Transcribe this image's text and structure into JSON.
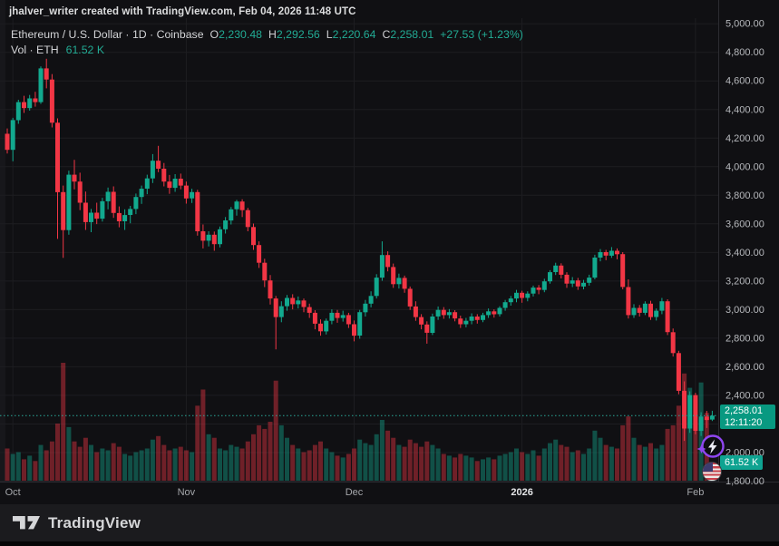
{
  "attribution": "jhalver_writer created with TradingView.com, Feb 04, 2026 11:48 UTC",
  "legend": {
    "title": "Ethereum / U.S. Dollar · 1D · Coinbase",
    "ohlc": [
      {
        "label": "O",
        "value": "2,230.48"
      },
      {
        "label": "H",
        "value": "2,292.56"
      },
      {
        "label": "L",
        "value": "2,220.64"
      },
      {
        "label": "C",
        "value": "2,258.01"
      }
    ],
    "change": "+27.53 (+1.23%)",
    "volume_label": "Vol · ETH",
    "volume_value": "61.52 K"
  },
  "price_label": {
    "price": "2,258.01",
    "countdown": "12:11:20"
  },
  "volume_badge": "61.52 K",
  "footer": {
    "logo_text": "TradingView"
  },
  "colors": {
    "background": "#101013",
    "grid": "#1d1d21",
    "up": "#12a98e",
    "down": "#f23645",
    "vol_up": "rgba(18,169,142,0.42)",
    "vol_down": "rgba(242,54,69,0.42)",
    "dotted_line": "#2aa99a",
    "accent_label": "#089981",
    "legend_value": "#22ab94",
    "axis_text": "#b6b8bc",
    "time_text": "#a5a7ab",
    "year_text": "#e4e5e7"
  },
  "chart_data": {
    "type": "candlestick",
    "symbol": "Ethereum / U.S. Dollar (ETHUSD)",
    "interval": "1D",
    "exchange": "Coinbase",
    "x_range": "Oct 1, 2025 - Feb 4, 2026",
    "ylim": [
      1800,
      5000
    ],
    "ytick": 200,
    "grid": true,
    "last_close": 2258.01,
    "last_volume_k": 61.52,
    "price_axis_labels": [
      "5,000.00",
      "4,800.00",
      "4,600.00",
      "4,400.00",
      "4,200.00",
      "4,000.00",
      "3,800.00",
      "3,600.00",
      "3,400.00",
      "3,200.00",
      "3,000.00",
      "2,800.00",
      "2,600.00",
      "2,400.00",
      "2,200.00",
      "2,000.00",
      "1,800.00"
    ],
    "months": [
      {
        "label": "Oct",
        "i": 1,
        "bold": false
      },
      {
        "label": "Nov",
        "i": 32,
        "bold": false
      },
      {
        "label": "Dec",
        "i": 62,
        "bold": false
      },
      {
        "label": "2026",
        "i": 92,
        "bold": true
      },
      {
        "label": "Feb",
        "i": 123,
        "bold": false
      }
    ],
    "candles": [
      [
        4230,
        4268,
        4092,
        4118
      ],
      [
        4118,
        4342,
        4038,
        4326
      ],
      [
        4326,
        4468,
        4300,
        4452
      ],
      [
        4452,
        4496,
        4376,
        4410
      ],
      [
        4410,
        4502,
        4392,
        4478
      ],
      [
        4478,
        4524,
        4420,
        4452
      ],
      [
        4452,
        4702,
        4440,
        4688
      ],
      [
        4688,
        4755,
        4548,
        4610
      ],
      [
        4610,
        4648,
        4275,
        4308
      ],
      [
        4308,
        4338,
        3495,
        3822
      ],
      [
        3822,
        3868,
        3362,
        3556
      ],
      [
        3556,
        3972,
        3524,
        3944
      ],
      [
        3944,
        4048,
        3842,
        3896
      ],
      [
        3896,
        3958,
        3696,
        3748
      ],
      [
        3748,
        3826,
        3558,
        3612
      ],
      [
        3612,
        3704,
        3542,
        3678
      ],
      [
        3678,
        3748,
        3598,
        3636
      ],
      [
        3636,
        3782,
        3616,
        3758
      ],
      [
        3758,
        3854,
        3702,
        3824
      ],
      [
        3824,
        3862,
        3642,
        3676
      ],
      [
        3676,
        3722,
        3576,
        3618
      ],
      [
        3618,
        3702,
        3558,
        3662
      ],
      [
        3662,
        3726,
        3604,
        3704
      ],
      [
        3704,
        3812,
        3668,
        3788
      ],
      [
        3788,
        3868,
        3740,
        3846
      ],
      [
        3846,
        3944,
        3808,
        3918
      ],
      [
        3918,
        4088,
        3886,
        4042
      ],
      [
        4042,
        4146,
        3962,
        3986
      ],
      [
        3986,
        4026,
        3862,
        3896
      ],
      [
        3896,
        3942,
        3810,
        3852
      ],
      [
        3852,
        3948,
        3824,
        3916
      ],
      [
        3916,
        3952,
        3842,
        3868
      ],
      [
        3868,
        3896,
        3742,
        3778
      ],
      [
        3778,
        3846,
        3746,
        3822
      ],
      [
        3822,
        3838,
        3518,
        3548
      ],
      [
        3548,
        3596,
        3428,
        3482
      ],
      [
        3482,
        3548,
        3442,
        3524
      ],
      [
        3524,
        3546,
        3412,
        3458
      ],
      [
        3458,
        3582,
        3436,
        3562
      ],
      [
        3562,
        3648,
        3532,
        3624
      ],
      [
        3624,
        3718,
        3596,
        3702
      ],
      [
        3702,
        3768,
        3658,
        3756
      ],
      [
        3756,
        3772,
        3648,
        3696
      ],
      [
        3696,
        3712,
        3548,
        3578
      ],
      [
        3578,
        3602,
        3418,
        3452
      ],
      [
        3452,
        3478,
        3292,
        3328
      ],
      [
        3328,
        3356,
        3158,
        3204
      ],
      [
        3204,
        3242,
        3036,
        3078
      ],
      [
        3078,
        3096,
        2722,
        2948
      ],
      [
        2948,
        3058,
        2912,
        3024
      ],
      [
        3024,
        3102,
        2992,
        3082
      ],
      [
        3082,
        3108,
        3002,
        3038
      ],
      [
        3038,
        3092,
        3008,
        3064
      ],
      [
        3064,
        3078,
        2982,
        3018
      ],
      [
        3018,
        3042,
        2942,
        2978
      ],
      [
        2978,
        2996,
        2862,
        2902
      ],
      [
        2902,
        2932,
        2818,
        2848
      ],
      [
        2848,
        2938,
        2826,
        2922
      ],
      [
        2922,
        3002,
        2898,
        2978
      ],
      [
        2978,
        2998,
        2908,
        2942
      ],
      [
        2942,
        2992,
        2916,
        2962
      ],
      [
        2962,
        2978,
        2872,
        2898
      ],
      [
        2898,
        2924,
        2778,
        2818
      ],
      [
        2818,
        2998,
        2796,
        2982
      ],
      [
        2982,
        3068,
        2952,
        3042
      ],
      [
        3042,
        3128,
        3016,
        3096
      ],
      [
        3096,
        3248,
        3078,
        3224
      ],
      [
        3224,
        3478,
        3202,
        3382
      ],
      [
        3382,
        3408,
        3268,
        3298
      ],
      [
        3298,
        3322,
        3152,
        3178
      ],
      [
        3178,
        3252,
        3148,
        3222
      ],
      [
        3222,
        3238,
        3118,
        3146
      ],
      [
        3146,
        3162,
        2998,
        3022
      ],
      [
        3022,
        3058,
        2922,
        2948
      ],
      [
        2948,
        2968,
        2862,
        2896
      ],
      [
        2896,
        2918,
        2762,
        2838
      ],
      [
        2838,
        2972,
        2822,
        2952
      ],
      [
        2952,
        3022,
        2928,
        2998
      ],
      [
        2998,
        3018,
        2936,
        2962
      ],
      [
        2962,
        3004,
        2938,
        2982
      ],
      [
        2982,
        2996,
        2918,
        2938
      ],
      [
        2938,
        2958,
        2872,
        2898
      ],
      [
        2898,
        2942,
        2876,
        2922
      ],
      [
        2922,
        2974,
        2898,
        2952
      ],
      [
        2952,
        2968,
        2902,
        2928
      ],
      [
        2928,
        2978,
        2912,
        2962
      ],
      [
        2962,
        3008,
        2942,
        2988
      ],
      [
        2988,
        3002,
        2944,
        2968
      ],
      [
        2968,
        3024,
        2952,
        3012
      ],
      [
        3012,
        3068,
        2992,
        3052
      ],
      [
        3052,
        3096,
        3028,
        3078
      ],
      [
        3078,
        3138,
        3052,
        3118
      ],
      [
        3118,
        3132,
        3048,
        3082
      ],
      [
        3082,
        3128,
        3058,
        3112
      ],
      [
        3112,
        3168,
        3092,
        3154
      ],
      [
        3154,
        3172,
        3108,
        3138
      ],
      [
        3138,
        3216,
        3122,
        3198
      ],
      [
        3198,
        3276,
        3182,
        3262
      ],
      [
        3262,
        3328,
        3242,
        3308
      ],
      [
        3308,
        3324,
        3218,
        3244
      ],
      [
        3244,
        3262,
        3152,
        3182
      ],
      [
        3182,
        3228,
        3158,
        3204
      ],
      [
        3204,
        3222,
        3138,
        3162
      ],
      [
        3162,
        3208,
        3142,
        3188
      ],
      [
        3188,
        3244,
        3168,
        3224
      ],
      [
        3224,
        3384,
        3212,
        3364
      ],
      [
        3364,
        3424,
        3338,
        3402
      ],
      [
        3402,
        3418,
        3346,
        3378
      ],
      [
        3378,
        3438,
        3362,
        3412
      ],
      [
        3412,
        3428,
        3352,
        3388
      ],
      [
        3388,
        3402,
        3142,
        3158
      ],
      [
        3158,
        3212,
        2938,
        2962
      ],
      [
        2962,
        3038,
        2942,
        3012
      ],
      [
        3012,
        3032,
        2952,
        2978
      ],
      [
        2978,
        3058,
        2962,
        3042
      ],
      [
        3042,
        3062,
        2928,
        2948
      ],
      [
        2948,
        3008,
        2924,
        2992
      ],
      [
        2992,
        3082,
        2968,
        3058
      ],
      [
        3058,
        3072,
        2822,
        2842
      ],
      [
        2842,
        2868,
        2672,
        2696
      ],
      [
        2696,
        2712,
        2408,
        2432
      ],
      [
        2432,
        2498,
        2082,
        2168
      ],
      [
        2168,
        2428,
        2138,
        2402
      ],
      [
        2402,
        2418,
        2128,
        2152
      ],
      [
        2152,
        2282,
        2116,
        2252
      ],
      [
        2252,
        2292,
        2172,
        2228
      ],
      [
        2230.48,
        2292.56,
        2220.64,
        2258.01
      ]
    ],
    "volumes_k": [
      180,
      150,
      160,
      120,
      140,
      110,
      200,
      170,
      220,
      320,
      660,
      300,
      220,
      190,
      240,
      200,
      160,
      180,
      170,
      210,
      190,
      150,
      140,
      160,
      170,
      180,
      230,
      250,
      200,
      170,
      180,
      190,
      170,
      160,
      420,
      510,
      260,
      240,
      180,
      170,
      200,
      190,
      180,
      220,
      260,
      310,
      290,
      330,
      560,
      310,
      240,
      200,
      180,
      160,
      170,
      200,
      220,
      180,
      160,
      140,
      130,
      150,
      180,
      230,
      210,
      200,
      260,
      340,
      280,
      240,
      200,
      190,
      230,
      210,
      190,
      220,
      200,
      180,
      150,
      140,
      130,
      150,
      140,
      130,
      110,
      120,
      130,
      120,
      140,
      150,
      160,
      180,
      160,
      150,
      170,
      140,
      180,
      210,
      230,
      200,
      190,
      160,
      170,
      150,
      180,
      280,
      240,
      200,
      190,
      180,
      310,
      360,
      240,
      200,
      190,
      210,
      180,
      200,
      290,
      310,
      420,
      600,
      520,
      460,
      550,
      380,
      61.52
    ]
  }
}
